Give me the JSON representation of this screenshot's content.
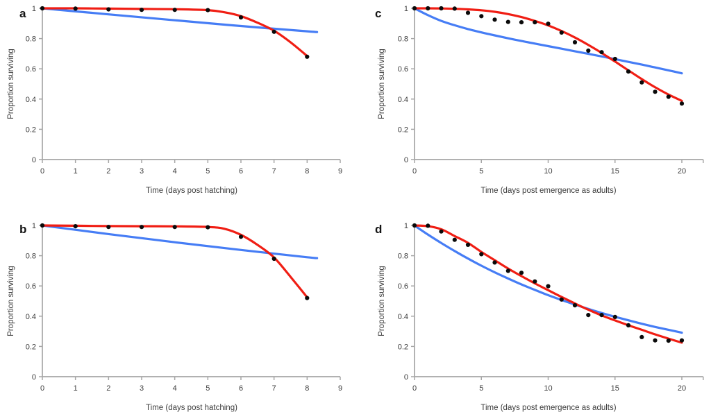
{
  "figure": {
    "background": "#ffffff",
    "colors": {
      "red": "#f01e14",
      "blue": "#467df5",
      "points": "#0a0a0a",
      "axis": "#a6a6a6",
      "text": "#3d3d3d",
      "letter": "#141414"
    },
    "panels_order": [
      "a",
      "c",
      "b",
      "d"
    ],
    "shared_ylabel": "Proportion surviving"
  },
  "chart_data": [
    {
      "panel": "a",
      "type": "scatter",
      "title": "",
      "xlabel": "Time (days post hatching)",
      "ylabel": "Proportion surviving",
      "xlim": [
        0,
        9
      ],
      "ylim": [
        0,
        1
      ],
      "x_ticks": [
        0,
        1,
        2,
        3,
        4,
        5,
        6,
        7,
        8,
        9
      ],
      "y_ticks": [
        0,
        0.2,
        0.4,
        0.6,
        0.8,
        1
      ],
      "y_tick_labels": [
        "0",
        "0.2",
        "0.4",
        "0.6",
        "0.8",
        "1"
      ],
      "points": {
        "name": "observed-proportion-surviving",
        "x": [
          0,
          1,
          2,
          3,
          4,
          5,
          6,
          7,
          8
        ],
        "y": [
          1.0,
          0.998,
          0.993,
          0.99,
          0.99,
          0.988,
          0.94,
          0.845,
          0.68
        ]
      },
      "curves": [
        {
          "name": "blue-model-fit",
          "color_key": "blue",
          "x": [
            0,
            2,
            4,
            6,
            8,
            8.3
          ],
          "y": [
            1.0,
            0.96,
            0.921,
            0.883,
            0.848,
            0.843
          ]
        },
        {
          "name": "red-model-fit",
          "color_key": "red",
          "x": [
            0,
            1,
            2,
            3,
            4,
            5,
            5.5,
            6,
            6.5,
            7,
            7.5,
            8
          ],
          "y": [
            1.0,
            1.0,
            0.998,
            0.996,
            0.994,
            0.988,
            0.974,
            0.948,
            0.905,
            0.852,
            0.775,
            0.685
          ]
        }
      ]
    },
    {
      "panel": "c",
      "type": "scatter",
      "title": "",
      "xlabel": "Time (days post emergence as adults)",
      "ylabel": "Proportion surviving",
      "xlim": [
        0,
        21.6
      ],
      "ylim": [
        0,
        1
      ],
      "x_ticks": [
        0,
        5,
        10,
        15,
        20
      ],
      "y_ticks": [
        0,
        0.2,
        0.4,
        0.6,
        0.8,
        1
      ],
      "y_tick_labels": [
        "0",
        "0.2",
        "0.4",
        "0.6",
        "0.8",
        "1"
      ],
      "points": {
        "name": "observed-proportion-surviving",
        "x": [
          0,
          1,
          2,
          3,
          4,
          5,
          6,
          7,
          8,
          9,
          10,
          11,
          12,
          13,
          14,
          15,
          16,
          17,
          18,
          19,
          20
        ],
        "y": [
          1.0,
          1.0,
          1.0,
          0.998,
          0.97,
          0.948,
          0.925,
          0.91,
          0.908,
          0.908,
          0.898,
          0.84,
          0.775,
          0.72,
          0.71,
          0.665,
          0.582,
          0.51,
          0.448,
          0.415,
          0.37
        ]
      },
      "curves": [
        {
          "name": "blue-model-fit",
          "color_key": "blue",
          "x": [
            0,
            1,
            2,
            3,
            4,
            5,
            6,
            7,
            8,
            9,
            10,
            11,
            12,
            13,
            14,
            15,
            16,
            17,
            18,
            19,
            20
          ],
          "y": [
            1.0,
            0.955,
            0.917,
            0.888,
            0.863,
            0.841,
            0.821,
            0.802,
            0.784,
            0.767,
            0.75,
            0.733,
            0.716,
            0.699,
            0.682,
            0.664,
            0.646,
            0.628,
            0.609,
            0.59,
            0.57
          ]
        },
        {
          "name": "red-model-fit",
          "color_key": "red",
          "x": [
            0,
            1,
            2,
            3,
            4,
            5,
            6,
            7,
            8,
            9,
            10,
            11,
            12,
            13,
            14,
            15,
            16,
            17,
            18,
            19,
            20
          ],
          "y": [
            1.0,
            1.0,
            0.999,
            0.997,
            0.993,
            0.987,
            0.977,
            0.962,
            0.942,
            0.917,
            0.887,
            0.85,
            0.807,
            0.758,
            0.705,
            0.648,
            0.59,
            0.532,
            0.478,
            0.43,
            0.388
          ]
        }
      ]
    },
    {
      "panel": "b",
      "type": "scatter",
      "title": "",
      "xlabel": "Time (days post hatching)",
      "ylabel": "Proportion surviving",
      "xlim": [
        0,
        9
      ],
      "ylim": [
        0,
        1
      ],
      "x_ticks": [
        0,
        1,
        2,
        3,
        4,
        5,
        6,
        7,
        8,
        9
      ],
      "y_ticks": [
        0,
        0.2,
        0.4,
        0.6,
        0.8,
        1
      ],
      "y_tick_labels": [
        "0",
        "0.2",
        "0.4",
        "0.6",
        "0.8",
        "1"
      ],
      "points": {
        "name": "observed-proportion-surviving",
        "x": [
          0,
          1,
          2,
          3,
          4,
          5,
          6,
          7,
          8
        ],
        "y": [
          1.0,
          0.995,
          0.99,
          0.99,
          0.99,
          0.988,
          0.925,
          0.78,
          0.52
        ]
      },
      "curves": [
        {
          "name": "blue-model-fit",
          "color_key": "blue",
          "x": [
            0,
            2,
            4,
            6,
            8,
            8.3
          ],
          "y": [
            1.0,
            0.943,
            0.889,
            0.838,
            0.79,
            0.784
          ]
        },
        {
          "name": "red-model-fit",
          "color_key": "red",
          "x": [
            0,
            1,
            2,
            3,
            4,
            5,
            5.5,
            6,
            6.5,
            7,
            7.5,
            8
          ],
          "y": [
            1.0,
            0.998,
            0.996,
            0.995,
            0.994,
            0.99,
            0.978,
            0.938,
            0.872,
            0.788,
            0.66,
            0.525
          ]
        }
      ]
    },
    {
      "panel": "d",
      "type": "scatter",
      "title": "",
      "xlabel": "Time (days post emergence as adults)",
      "ylabel": "Proportion surviving",
      "xlim": [
        0,
        21.6
      ],
      "ylim": [
        0,
        1
      ],
      "x_ticks": [
        0,
        5,
        10,
        15,
        20
      ],
      "y_ticks": [
        0,
        0.2,
        0.4,
        0.6,
        0.8,
        1
      ],
      "y_tick_labels": [
        "0",
        "0.2",
        "0.4",
        "0.6",
        "0.8",
        "1"
      ],
      "points": {
        "name": "observed-proportion-surviving",
        "x": [
          0,
          1,
          2,
          3,
          4,
          5,
          6,
          7,
          8,
          9,
          10,
          11,
          12,
          13,
          14,
          15,
          16,
          17,
          18,
          19,
          20
        ],
        "y": [
          1.0,
          0.998,
          0.96,
          0.905,
          0.872,
          0.81,
          0.755,
          0.7,
          0.687,
          0.63,
          0.598,
          0.51,
          0.472,
          0.408,
          0.408,
          0.395,
          0.34,
          0.262,
          0.24,
          0.238,
          0.24
        ]
      },
      "curves": [
        {
          "name": "blue-model-fit",
          "color_key": "blue",
          "x": [
            0,
            1,
            2,
            3,
            4,
            5,
            6,
            7,
            8,
            9,
            10,
            11,
            12,
            13,
            14,
            15,
            16,
            17,
            18,
            19,
            20
          ],
          "y": [
            1.0,
            0.94,
            0.884,
            0.831,
            0.781,
            0.734,
            0.69,
            0.649,
            0.61,
            0.574,
            0.539,
            0.507,
            0.477,
            0.448,
            0.421,
            0.396,
            0.373,
            0.35,
            0.329,
            0.31,
            0.291
          ]
        },
        {
          "name": "red-model-fit",
          "color_key": "red",
          "x": [
            0,
            1,
            2,
            3,
            4,
            5,
            6,
            7,
            8,
            9,
            10,
            11,
            12,
            13,
            14,
            15,
            16,
            17,
            18,
            19,
            20
          ],
          "y": [
            1.0,
            0.995,
            0.975,
            0.93,
            0.885,
            0.825,
            0.77,
            0.715,
            0.665,
            0.617,
            0.572,
            0.527,
            0.484,
            0.443,
            0.405,
            0.372,
            0.34,
            0.31,
            0.28,
            0.252,
            0.225
          ]
        }
      ]
    }
  ]
}
